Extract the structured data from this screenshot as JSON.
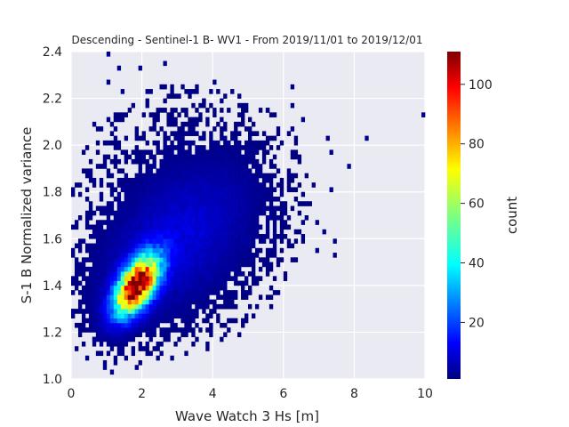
{
  "chart_data": {
    "type": "heatmap",
    "title": "Descending - Sentinel-1 B- WV1 - From 2019/11/01 to 2019/12/01",
    "xlabel": "Wave Watch 3 Hs [m]",
    "ylabel": "S-1 B Normalized variance",
    "xlim": [
      0,
      10
    ],
    "ylim": [
      1.0,
      2.4
    ],
    "xticks": [
      "0",
      "2",
      "4",
      "6",
      "8",
      "10"
    ],
    "yticks": [
      "1.0",
      "1.2",
      "1.4",
      "1.6",
      "1.8",
      "2.0",
      "2.2",
      "2.4"
    ],
    "grid": true,
    "colormap": "jet",
    "colorbar": {
      "label": "count",
      "min": 1,
      "max": 111,
      "ticks": [
        "20",
        "40",
        "60",
        "80",
        "100"
      ]
    },
    "colors": {
      "plot_background": "#eaeaf2",
      "grid": "#ffffff",
      "text": "#262626"
    },
    "density": {
      "core": {
        "x": 1.85,
        "y": 1.4,
        "peak_count": 111
      },
      "outlier_points": [
        [
          0.05,
          1.29
        ],
        [
          0.45,
          1.09
        ],
        [
          0.7,
          1.18
        ],
        [
          0.9,
          1.04
        ],
        [
          1.2,
          1.02
        ],
        [
          1.45,
          1.11
        ],
        [
          1.85,
          1.04
        ],
        [
          1.5,
          1.15
        ],
        [
          2.2,
          1.18
        ],
        [
          2.75,
          1.2
        ],
        [
          3.4,
          1.26
        ],
        [
          3.95,
          1.23
        ],
        [
          4.35,
          1.38
        ],
        [
          5.0,
          1.37
        ],
        [
          5.55,
          1.48
        ],
        [
          6.3,
          1.51
        ],
        [
          6.9,
          1.55
        ],
        [
          7.45,
          1.52
        ],
        [
          7.45,
          1.58
        ],
        [
          1.05,
          2.38
        ],
        [
          1.4,
          2.33
        ],
        [
          1.95,
          2.33
        ],
        [
          2.65,
          2.36
        ],
        [
          1.05,
          2.28
        ],
        [
          1.45,
          2.22
        ],
        [
          2.25,
          2.22
        ],
        [
          2.85,
          2.23
        ],
        [
          3.05,
          2.21
        ],
        [
          3.4,
          2.23
        ],
        [
          3.7,
          2.18
        ],
        [
          4.05,
          2.27
        ],
        [
          4.2,
          2.19
        ],
        [
          4.75,
          2.17
        ],
        [
          5.55,
          2.14
        ],
        [
          6.2,
          2.25
        ],
        [
          6.25,
          2.16
        ],
        [
          6.6,
          2.11
        ],
        [
          6.2,
          2.07
        ],
        [
          7.2,
          2.03
        ],
        [
          7.3,
          1.97
        ],
        [
          7.8,
          1.92
        ],
        [
          8.35,
          2.02
        ],
        [
          9.9,
          2.13
        ],
        [
          0.65,
          2.08
        ],
        [
          0.1,
          1.57
        ],
        [
          6.85,
          1.82
        ],
        [
          7.3,
          1.8
        ],
        [
          6.95,
          1.67
        ],
        [
          7.15,
          1.62
        ],
        [
          6.6,
          1.61
        ],
        [
          5.1,
          1.62
        ],
        [
          5.9,
          1.72
        ],
        [
          1.3,
          1.68
        ],
        [
          2.95,
          1.36
        ],
        [
          3.5,
          1.32
        ]
      ]
    }
  }
}
